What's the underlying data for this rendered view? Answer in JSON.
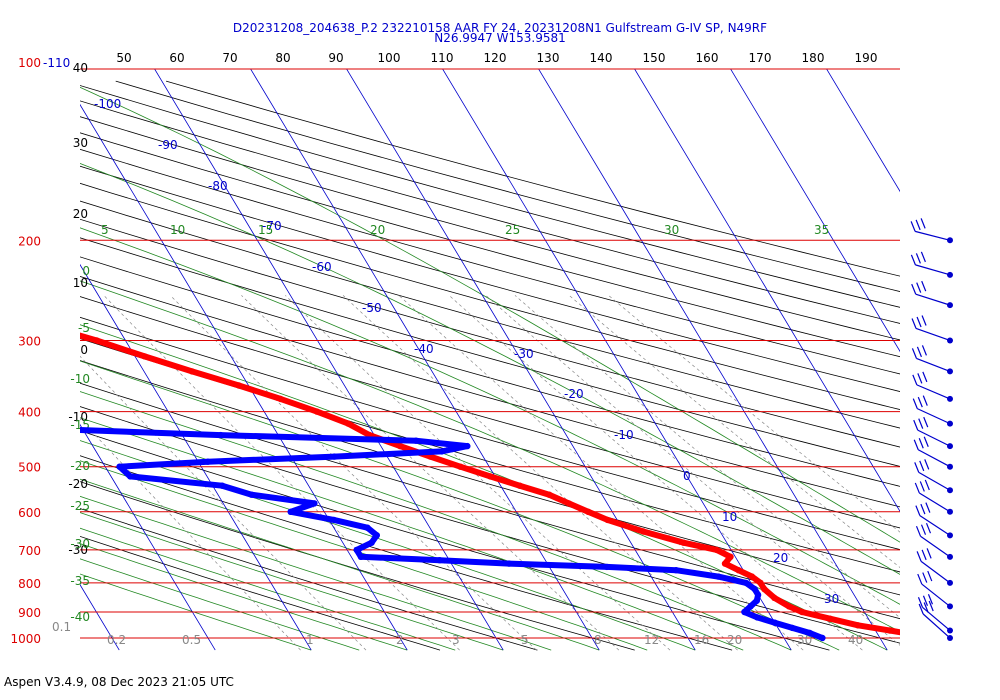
{
  "title_line1": "D20231208_204638_P.2 232210158 AAR FY 24, 20231208N1 Gulfstream G-IV SP, N49RF",
  "title_line2": "N26.9947 W153.9581",
  "footer": "Aspen V3.4.9, 08 Dec 2023  21:05 UTC",
  "colors": {
    "isobar": "#dd0000",
    "isotherm": "#0000cc",
    "dry_adiabat": "#000000",
    "moist_adiabat": "#228822",
    "mixing_ratio": "#888888",
    "temperature": "#ff0000",
    "dewpoint": "#0000ff"
  },
  "chart_data": {
    "type": "skew-t",
    "x_unit": "temperature (°C)",
    "y_unit": "pressure (hPa)",
    "ylim": [
      1000,
      100
    ],
    "isobars": [
      100,
      200,
      300,
      400,
      500,
      600,
      700,
      800,
      900,
      1000
    ],
    "isobar_labels": [
      "100",
      "200",
      "300",
      "400",
      "500",
      "600",
      "700",
      "800",
      "900",
      "1000"
    ],
    "top_temp_labels": [
      "50",
      "60",
      "70",
      "80",
      "90",
      "100",
      "110",
      "120",
      "130",
      "140",
      "150",
      "160",
      "170",
      "180",
      "190"
    ],
    "top_left_label": "-110",
    "isotherm_labels": [
      "-100",
      "-90",
      "-80",
      "-70",
      "-60",
      "-50",
      "-40",
      "-30",
      "-20",
      "-10",
      "0",
      "10",
      "20",
      "30"
    ],
    "left_axis_labels": [
      "40",
      "30",
      "20",
      "10",
      "0",
      "-10",
      "-20",
      "-30"
    ],
    "moist_adiabat_labels": [
      "5",
      "10",
      "15",
      "20",
      "25",
      "30",
      "35"
    ],
    "moist_adiabat_left_labels": [
      "0",
      "-5",
      "-10",
      "-15",
      "-20",
      "-25",
      "-30",
      "-35",
      "-40"
    ],
    "mixing_ratio_labels": [
      "0.1",
      "0.2",
      "0.5",
      "1",
      "2",
      "3",
      "5",
      "8",
      "12",
      "16",
      "20",
      "30",
      "40"
    ],
    "temperature_profile": {
      "p": [
        1000,
        970,
        950,
        925,
        900,
        880,
        850,
        820,
        800,
        780,
        760,
        740,
        720,
        700,
        680,
        650,
        620,
        600,
        580,
        560,
        540,
        520,
        500,
        480,
        460,
        440,
        420,
        400,
        380,
        360,
        340,
        320,
        300,
        280,
        260,
        250,
        240,
        230,
        220,
        210,
        200,
        195,
        190
      ],
      "t": [
        25.5,
        21.5,
        18.5,
        16,
        13.5,
        12.5,
        11.5,
        11,
        11,
        10.5,
        9.5,
        8.5,
        9.5,
        8.5,
        5.5,
        2,
        -1,
        -2.5,
        -4,
        -5.5,
        -8,
        -10.5,
        -13,
        -15.5,
        -18,
        -20.5,
        -22,
        -24.5,
        -27.5,
        -31,
        -35,
        -39,
        -43,
        -48,
        -52,
        -55,
        -57,
        -59,
        -61.5,
        -61,
        -59,
        -56.5,
        -54
      ]
    },
    "dewpoint_profile": {
      "p": [
        1000,
        980,
        960,
        940,
        920,
        900,
        880,
        860,
        840,
        820,
        800,
        780,
        760,
        750,
        740,
        730,
        720,
        700,
        680,
        660,
        640,
        620,
        600,
        580,
        560,
        540,
        520,
        500,
        490,
        480,
        470,
        460,
        450,
        440,
        430,
        420,
        410,
        400,
        390,
        380,
        370,
        360,
        350,
        340,
        330,
        320,
        310,
        300,
        290,
        280,
        270,
        260,
        250
      ],
      "td": [
        14,
        13,
        11.5,
        10,
        8.5,
        7.5,
        8.5,
        9.5,
        10,
        10,
        9.5,
        7,
        3,
        -4,
        -14,
        -21,
        -29,
        -29,
        -27,
        -26,
        -26.5,
        -29.5,
        -33.5,
        -30.5,
        -36.5,
        -39,
        -48,
        -48.5,
        -39,
        -25.5,
        -14,
        -11,
        -16,
        -36,
        -52,
        -64,
        -64.5,
        -63,
        -61,
        -62,
        -62,
        -61.5,
        -60,
        -58,
        -58.5,
        -54,
        -53.5,
        -52,
        -53,
        -58,
        -61,
        -58,
        -56
      ]
    },
    "wind_barb_pressures": [
      200,
      230,
      260,
      300,
      340,
      380,
      420,
      460,
      500,
      550,
      600,
      660,
      720,
      800,
      880,
      970,
      1000
    ]
  }
}
